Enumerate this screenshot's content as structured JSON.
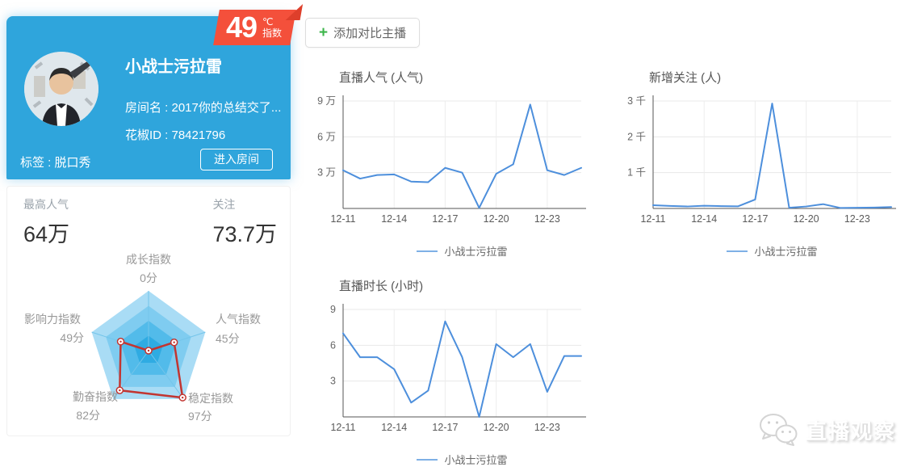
{
  "profile": {
    "badge_value": "49",
    "badge_unit": "℃",
    "badge_label": "指数",
    "name": "小战士污拉雷",
    "room": "房间名 : 2017你的总结交了...",
    "platform_id": "花椒ID : 78421796",
    "tag": "标签 : 脱口秀",
    "enter_button": "进入房间"
  },
  "stats": {
    "items": [
      {
        "label": "最高人气",
        "value": "64万"
      },
      {
        "label": "关注",
        "value": "73.7万"
      }
    ]
  },
  "toolbar": {
    "add_compare_label": "添加对比主播",
    "plus": "+"
  },
  "watermark": {
    "text": "直播观察"
  },
  "colors": {
    "card_blue": "#2FA5DC",
    "badge_red": "#F4503B",
    "line_blue": "#4D8FDC",
    "legend_blue": "#7EB0E6",
    "radar_red": "#C23531",
    "radar_rings": [
      "#A9DCF5",
      "#7FCCF0",
      "#52BBEA",
      "#2FABE2"
    ],
    "radar_spoke": "#74C5EA"
  },
  "chart_data": [
    {
      "type": "radar",
      "max": 100,
      "value_suffix": "分",
      "axes": [
        {
          "label": "成长指数",
          "value": 0
        },
        {
          "label": "人气指数",
          "value": 45
        },
        {
          "label": "稳定指数",
          "value": 97
        },
        {
          "label": "勤奋指数",
          "value": 82
        },
        {
          "label": "影响力指数",
          "value": 49
        }
      ]
    },
    {
      "type": "line",
      "title": "直播人气 (人气)",
      "unit": "万",
      "x": [
        "12-11",
        "12-12",
        "12-13",
        "12-14",
        "12-15",
        "12-16",
        "12-17",
        "12-18",
        "12-19",
        "12-20",
        "12-21",
        "12-22",
        "12-23",
        "12-24",
        "12-25"
      ],
      "values": [
        3.2,
        2.5,
        2.8,
        2.85,
        2.25,
        2.2,
        3.4,
        3.0,
        0.05,
        2.9,
        3.7,
        8.7,
        3.2,
        2.8,
        3.4
      ],
      "ylim": [
        0,
        9
      ],
      "yticks": [
        {
          "value": 3,
          "label": "3 万"
        },
        {
          "value": 6,
          "label": "6 万"
        },
        {
          "value": 9,
          "label": "9 万"
        }
      ],
      "xticks": [
        "12-11",
        "12-14",
        "12-17",
        "12-20",
        "12-23"
      ],
      "grid": true,
      "legend": "小战士污拉雷",
      "legend_position": "bottom"
    },
    {
      "type": "line",
      "title": "新增关注 (人)",
      "unit": "人",
      "x": [
        "12-11",
        "12-12",
        "12-13",
        "12-14",
        "12-15",
        "12-16",
        "12-17",
        "12-18",
        "12-19",
        "12-20",
        "12-21",
        "12-22",
        "12-23",
        "12-24",
        "12-25"
      ],
      "values": [
        90,
        70,
        55,
        75,
        65,
        60,
        250,
        2930,
        20,
        55,
        120,
        15,
        20,
        25,
        40
      ],
      "ylim": [
        0,
        3000
      ],
      "yticks": [
        {
          "value": 1000,
          "label": "1 千"
        },
        {
          "value": 2000,
          "label": "2 千"
        },
        {
          "value": 3000,
          "label": "3 千"
        }
      ],
      "xticks": [
        "12-11",
        "12-14",
        "12-17",
        "12-20",
        "12-23"
      ],
      "grid": true,
      "legend": "小战士污拉雷",
      "legend_position": "bottom"
    },
    {
      "type": "line",
      "title": "直播时长 (小时)",
      "unit": "小时",
      "x": [
        "12-11",
        "12-12",
        "12-13",
        "12-14",
        "12-15",
        "12-16",
        "12-17",
        "12-18",
        "12-19",
        "12-20",
        "12-21",
        "12-22",
        "12-23",
        "12-24",
        "12-25"
      ],
      "values": [
        7,
        5,
        5,
        4,
        1.2,
        2.2,
        8,
        5,
        0,
        6.1,
        5,
        6.1,
        2.1,
        5.1,
        5.1
      ],
      "ylim": [
        0,
        9
      ],
      "yticks": [
        {
          "value": 3,
          "label": "3"
        },
        {
          "value": 6,
          "label": "6"
        },
        {
          "value": 9,
          "label": "9"
        }
      ],
      "xticks": [
        "12-11",
        "12-14",
        "12-17",
        "12-20",
        "12-23"
      ],
      "grid": true,
      "legend": "小战士污拉雷",
      "legend_position": "bottom"
    }
  ]
}
